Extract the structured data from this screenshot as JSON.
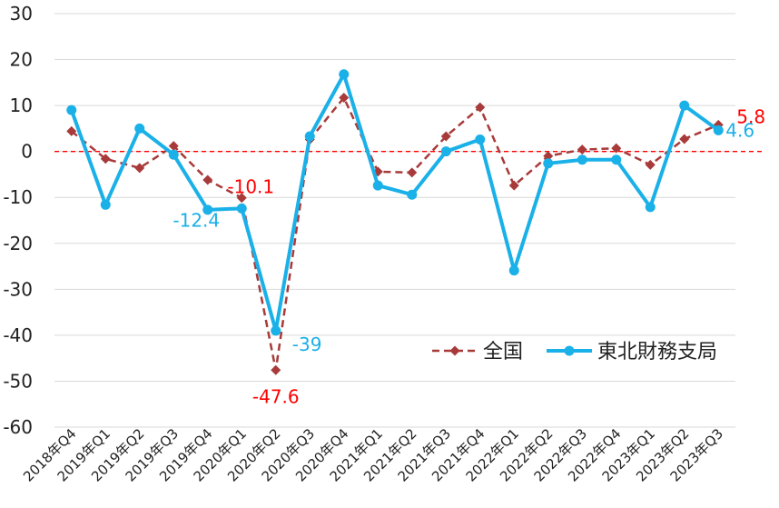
{
  "chart_data": {
    "type": "line",
    "categories": [
      "2018年Q4",
      "2019年Q1",
      "2019年Q2",
      "2019年Q3",
      "2019年Q4",
      "2020年Q1",
      "2020年Q2",
      "2020年Q3",
      "2020年Q4",
      "2021年Q1",
      "2021年Q2",
      "2021年Q3",
      "2021年Q4",
      "2022年Q1",
      "2022年Q2",
      "2022年Q3",
      "2022年Q4",
      "2023年Q1",
      "2023年Q2",
      "2023年Q3"
    ],
    "ylim": [
      -60,
      30
    ],
    "yticks": [
      30,
      20,
      10,
      0,
      -10,
      -20,
      -30,
      -40,
      -50,
      -60
    ],
    "grid": true,
    "zero_line": {
      "color": "#ff0000",
      "style": "dashed"
    },
    "legend": {
      "placement": "bottom-right"
    },
    "series": [
      {
        "name": "全国",
        "color": "#a83a3a",
        "line_style": "dashed",
        "marker": "diamond",
        "values": [
          4.4,
          -1.6,
          -3.6,
          1.2,
          -6.2,
          -10.1,
          -47.6,
          2.6,
          11.7,
          -4.4,
          -4.6,
          3.3,
          9.6,
          -7.4,
          -1.0,
          0.4,
          0.7,
          -2.9,
          2.7,
          5.8
        ]
      },
      {
        "name": "東北財務支局",
        "color": "#1ab0e8",
        "line_style": "solid",
        "marker": "circle",
        "values": [
          9.0,
          -11.6,
          5.0,
          -0.7,
          -12.7,
          -12.4,
          -39.0,
          3.3,
          16.8,
          -7.4,
          -9.4,
          0.0,
          2.6,
          -25.9,
          -2.6,
          -1.8,
          -1.8,
          -12.1,
          10.0,
          4.6
        ]
      }
    ],
    "annotations": [
      {
        "text": "-10.1",
        "series": 0,
        "index": 5,
        "color": "#ff0000"
      },
      {
        "text": "-47.6",
        "series": 0,
        "index": 6,
        "color": "#ff0000"
      },
      {
        "text": "5.8",
        "series": 0,
        "index": 19,
        "color": "#ff0000"
      },
      {
        "text": "-12.4",
        "series": 1,
        "index": 5,
        "color": "#1ab0e8"
      },
      {
        "text": "-39",
        "series": 1,
        "index": 6,
        "color": "#1ab0e8"
      },
      {
        "text": "4.6",
        "series": 1,
        "index": 19,
        "color": "#1ab0e8"
      }
    ]
  }
}
